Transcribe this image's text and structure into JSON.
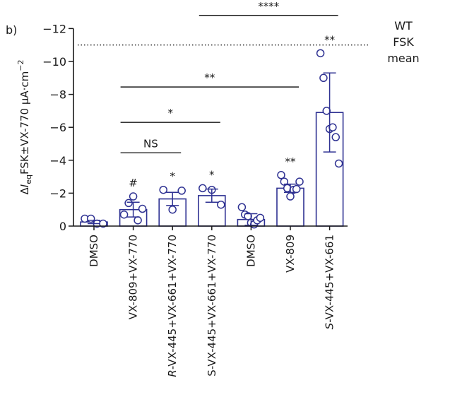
{
  "panel_label": "b)",
  "chart_data": {
    "type": "bar",
    "ylabel_parts": [
      "Δ",
      "I",
      "eq",
      "FSK±VX-770 μA·cm",
      "−2"
    ],
    "y_inverted": true,
    "ylim": [
      0,
      -12
    ],
    "yticks": [
      0,
      -2,
      -4,
      -6,
      -8,
      -10,
      -12
    ],
    "ytick_labels": [
      "0",
      "−2",
      "−4",
      "−6",
      "−8",
      "−10",
      "−12"
    ],
    "categories": [
      {
        "prefix": "",
        "text": "DMSO"
      },
      {
        "prefix": "",
        "text": "VX-809+VX-770"
      },
      {
        "prefix": "R",
        "text": "-VX-445+VX-661+VX-770"
      },
      {
        "prefix": "",
        "text": "S-VX-445+VX-661+VX-770"
      },
      {
        "prefix": "",
        "text": "DMSO"
      },
      {
        "prefix": "",
        "text": "VX-809"
      },
      {
        "prefix": "S",
        "text": "-VX-445+VX-661"
      }
    ],
    "means": [
      -0.25,
      -1.0,
      -1.65,
      -1.85,
      -0.4,
      -2.3,
      -6.9
    ],
    "errors": [
      0.1,
      0.45,
      0.4,
      0.4,
      0.35,
      0.25,
      2.4
    ],
    "points": [
      [
        -0.45,
        -0.45,
        -0.15,
        -0.15
      ],
      [
        -0.7,
        -1.4,
        -1.8,
        -0.35,
        -1.05
      ],
      [
        -2.2,
        -1.0,
        -2.15
      ],
      [
        -2.3,
        -2.2,
        -1.3
      ],
      [
        -1.15,
        -0.7,
        -0.6,
        -0.2,
        -0.1,
        -0.35,
        -0.5
      ],
      [
        -3.1,
        -2.7,
        -2.3,
        -1.8,
        -2.2,
        -2.25,
        -2.7
      ],
      [
        -10.5,
        -9.0,
        -7.0,
        -5.9,
        -6.0,
        -5.4,
        -3.8
      ]
    ],
    "bar_labels": [
      "",
      "#",
      "*",
      "*",
      "",
      "**",
      "**"
    ],
    "reference_line": {
      "value": -11,
      "style": "dotted",
      "label_lines": [
        "WT",
        "FSK",
        "mean"
      ]
    },
    "comparisons": [
      {
        "from": 1,
        "to": 2,
        "y": -4.45,
        "label": "NS"
      },
      {
        "from": 1,
        "to": 3,
        "y": -6.3,
        "label": "*"
      },
      {
        "from": 1,
        "to": 5,
        "y": -8.45,
        "label": "**"
      },
      {
        "from": 3,
        "to": 6,
        "y": -12.8,
        "label": "****"
      }
    ],
    "colors": {
      "bar_edge": "#2e3192",
      "axis": "#1a1a1a",
      "text": "#1a1a1a"
    }
  }
}
